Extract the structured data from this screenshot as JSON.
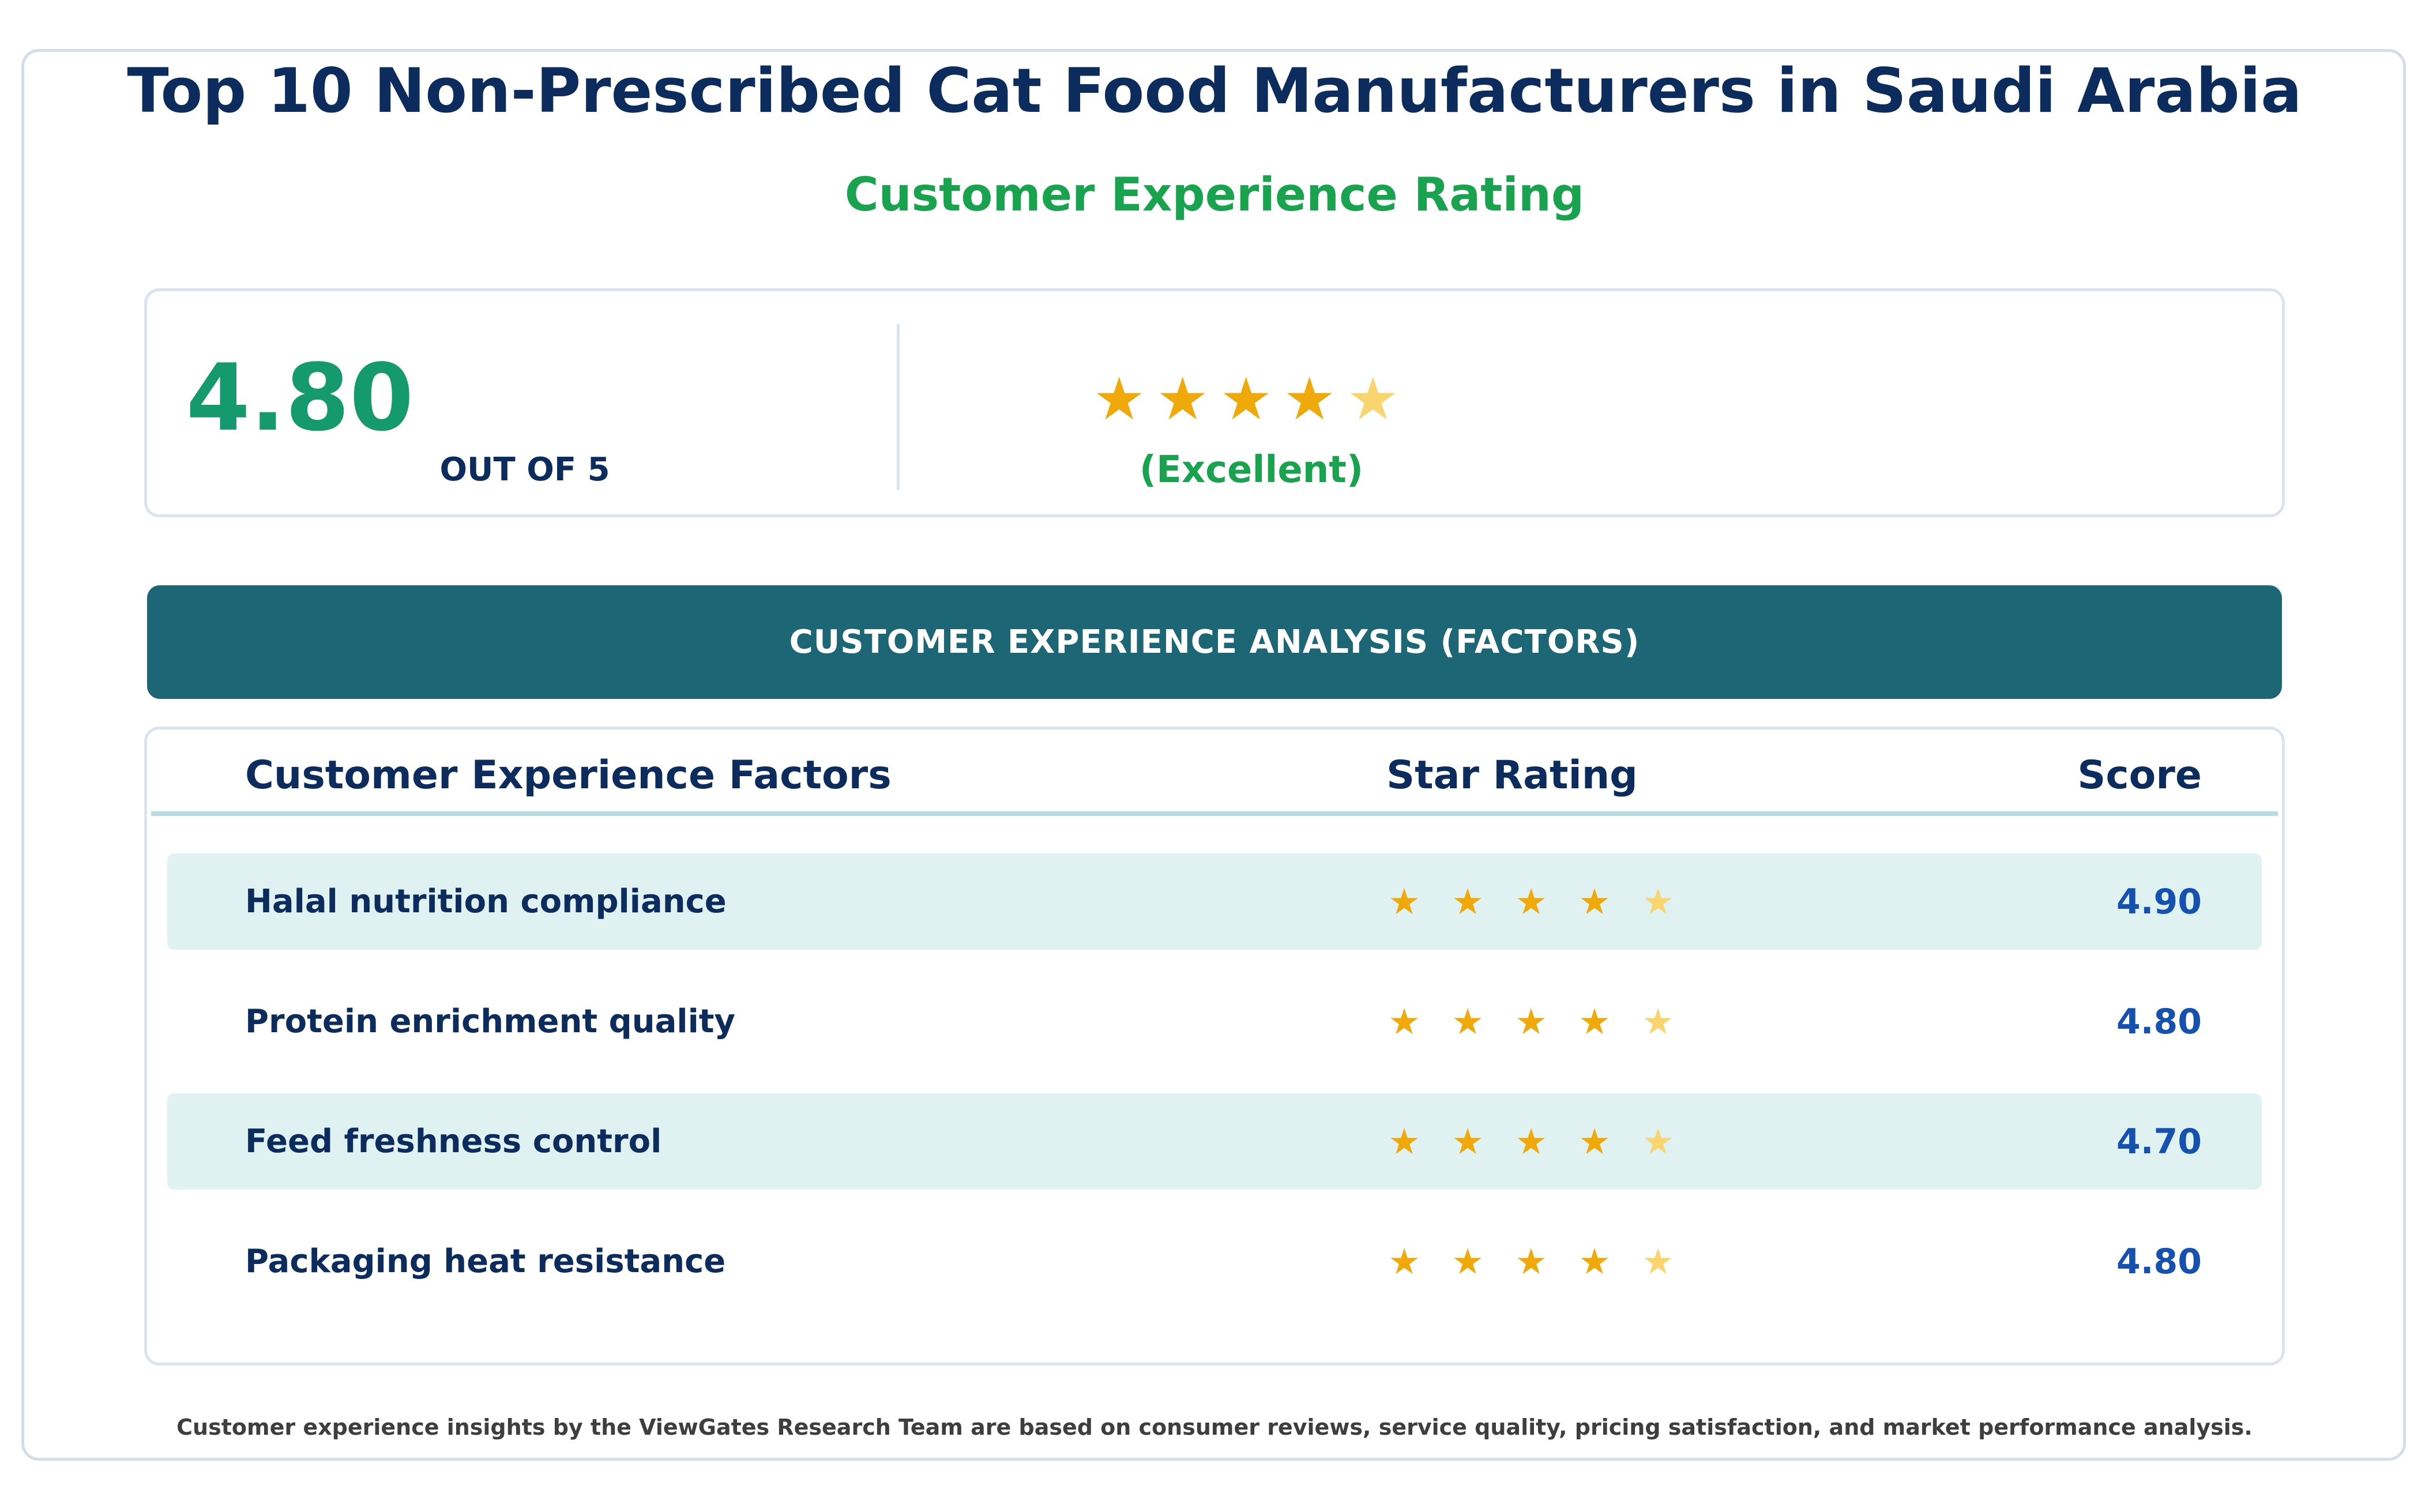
{
  "title": "Top 10 Non-Prescribed Cat Food Manufacturers in Saudi Arabia",
  "subtitle": "Customer Experience Rating",
  "summary": {
    "score": "4.80",
    "scale_label": "OUT OF 5",
    "rating": 4.8,
    "stars": [
      "★",
      "★",
      "★",
      "★",
      "★"
    ],
    "rating_label": "(Excellent)"
  },
  "banner": "CUSTOMER EXPERIENCE ANALYSIS (FACTORS)",
  "table": {
    "headers": {
      "factor": "Customer Experience Factors",
      "stars": "Star Rating",
      "score": "Score"
    },
    "rows": [
      {
        "factor": "Halal nutrition compliance",
        "stars": [
          "★",
          "★",
          "★",
          "★",
          "★"
        ],
        "score": "4.90",
        "rating": 4.9,
        "shaded": true
      },
      {
        "factor": "Protein enrichment quality",
        "stars": [
          "★",
          "★",
          "★",
          "★",
          "★"
        ],
        "score": "4.80",
        "rating": 4.8,
        "shaded": false
      },
      {
        "factor": "Feed freshness control",
        "stars": [
          "★",
          "★",
          "★",
          "★",
          "★"
        ],
        "score": "4.70",
        "rating": 4.7,
        "shaded": true
      },
      {
        "factor": "Packaging heat resistance",
        "stars": [
          "★",
          "★",
          "★",
          "★",
          "★"
        ],
        "score": "4.80",
        "rating": 4.8,
        "shaded": false
      }
    ]
  },
  "footnote": "Customer experience insights by the ViewGates Research Team are based on consumer reviews, service quality, pricing satisfaction, and market performance analysis.",
  "colors": {
    "title": "#0d2c5e",
    "accent_green": "#19a34e",
    "score_green": "#149a6c",
    "banner": "#1c6675",
    "star_full": "#f0a90a",
    "star_partial": "#f8d56e",
    "row_shade": "#e0f1f2",
    "score_blue": "#1552b0"
  }
}
